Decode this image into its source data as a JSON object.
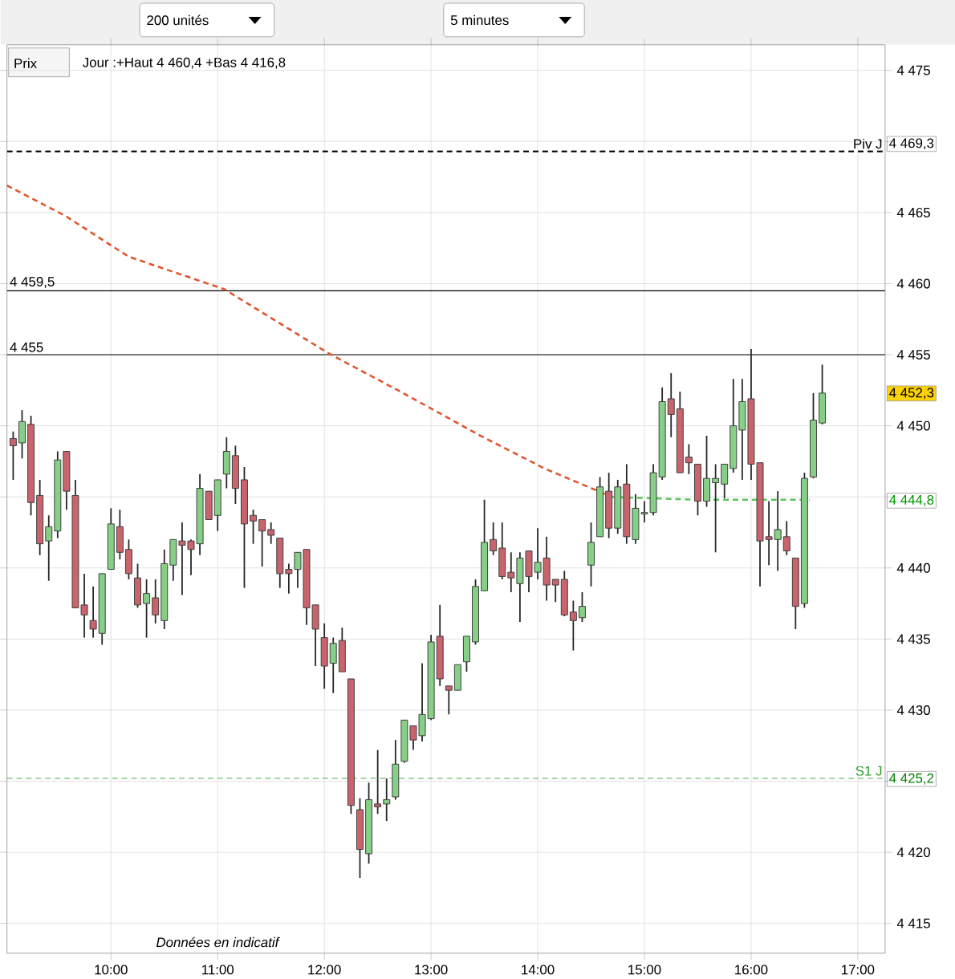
{
  "chart_data": {
    "type": "candlestick",
    "x": [
      9.0833,
      9.1667,
      9.25,
      9.3333,
      9.4167,
      9.5,
      9.5833,
      9.6667,
      9.75,
      9.8333,
      9.9167,
      10,
      10.0833,
      10.1667,
      10.25,
      10.3333,
      10.4167,
      10.5,
      10.5833,
      10.6667,
      10.75,
      10.8333,
      10.9167,
      11,
      11.0833,
      11.1667,
      11.25,
      11.3333,
      11.4167,
      11.5,
      11.5833,
      11.6667,
      11.75,
      11.8333,
      11.9167,
      12,
      12.0833,
      12.1667,
      12.25,
      12.3333,
      12.4167,
      12.5,
      12.5833,
      12.6667,
      12.75,
      12.8333,
      12.9167,
      13,
      13.0833,
      13.1667,
      13.25,
      13.3333,
      13.4167,
      13.5,
      13.5833,
      13.6667,
      13.75,
      13.8333,
      13.9167,
      14,
      14.0833,
      14.1667,
      14.25,
      14.3333,
      14.4167,
      14.5,
      14.5833,
      14.6667,
      14.75,
      14.8333,
      14.9167,
      15,
      15.0833,
      15.1667,
      15.25,
      15.3333,
      15.4167,
      15.5,
      15.5833,
      15.6667,
      15.75,
      15.8333,
      15.9167,
      16,
      16.0833,
      16.1667,
      16.25,
      16.3333,
      16.4167,
      16.5,
      16.5833,
      16.6667
    ],
    "ohlc": [
      [
        4449.1,
        4449.6,
        4446.2,
        4448.6
      ],
      [
        4448.8,
        4451.1,
        4447.7,
        4450.3
      ],
      [
        4450.1,
        4450.7,
        4443.7,
        4444.6
      ],
      [
        4445.1,
        4446.2,
        4440.9,
        4441.7
      ],
      [
        4441.9,
        4443.7,
        4439.1,
        4442.9
      ],
      [
        4442.6,
        4448.2,
        4442.1,
        4447.6
      ],
      [
        4448.2,
        4448.2,
        4444.1,
        4445.4
      ],
      [
        4445.1,
        4446.2,
        4437.2,
        4437.2
      ],
      [
        4437.4,
        4439.6,
        4435.1,
        4436.7
      ],
      [
        4436.3,
        4438.7,
        4435.1,
        4435.7
      ],
      [
        4435.4,
        4439.6,
        4434.6,
        4439.6
      ],
      [
        4439.9,
        4444.2,
        4439.9,
        4443.1
      ],
      [
        4442.9,
        4444.1,
        4440.6,
        4441.1
      ],
      [
        4441.3,
        4442.0,
        4439.2,
        4439.6
      ],
      [
        4439.3,
        4440.3,
        4437.2,
        4437.4
      ],
      [
        4437.5,
        4439.2,
        4435.1,
        4438.2
      ],
      [
        4437.9,
        4439.2,
        4436.1,
        4436.7
      ],
      [
        4436.3,
        4441.3,
        4435.7,
        4440.3
      ],
      [
        4440.2,
        4442.0,
        4439.1,
        4442.0
      ],
      [
        4441.9,
        4443.2,
        4438.1,
        4441.6
      ],
      [
        4441.9,
        4442.0,
        4439.5,
        4441.3
      ],
      [
        4441.7,
        4446.6,
        4440.9,
        4445.6
      ],
      [
        4445.4,
        4445.4,
        4443.4,
        4443.4
      ],
      [
        4443.7,
        4446.2,
        4442.6,
        4446.2
      ],
      [
        4446.6,
        4449.2,
        4445.6,
        4448.2
      ],
      [
        4447.9,
        4448.6,
        4444.5,
        4445.6
      ],
      [
        4446.2,
        4447.1,
        4438.6,
        4443.1
      ],
      [
        4443.7,
        4444.1,
        4441.7,
        4443.3
      ],
      [
        4443.4,
        4443.4,
        4440.1,
        4442.6
      ],
      [
        4442.7,
        4443.2,
        4441.7,
        4442.3
      ],
      [
        4442.1,
        4442.1,
        4438.6,
        4439.6
      ],
      [
        4439.9,
        4440.3,
        4438.2,
        4439.6
      ],
      [
        4439.9,
        4441.1,
        4438.6,
        4441.1
      ],
      [
        4441.3,
        4441.3,
        4436.0,
        4437.2
      ],
      [
        4437.4,
        4437.4,
        4433.1,
        4435.7
      ],
      [
        4435.1,
        4436.1,
        4431.5,
        4433.1
      ],
      [
        4433.3,
        4435.1,
        4431.2,
        4434.7
      ],
      [
        4434.9,
        4435.8,
        4432.7,
        4432.7
      ],
      [
        4432.2,
        4432.2,
        4422.7,
        4423.3
      ],
      [
        4423.0,
        4423.8,
        4418.2,
        4420.2
      ],
      [
        4419.9,
        4424.9,
        4419.2,
        4423.7
      ],
      [
        4423.4,
        4427.2,
        4422.7,
        4423.2
      ],
      [
        4423.4,
        4425.2,
        4422.2,
        4423.7
      ],
      [
        4423.9,
        4427.9,
        4423.7,
        4426.2
      ],
      [
        4426.4,
        4429.3,
        4426.3,
        4429.3
      ],
      [
        4428.9,
        4428.9,
        4427.2,
        4427.9
      ],
      [
        4428.2,
        4433.3,
        4427.8,
        4429.7
      ],
      [
        4429.4,
        4435.3,
        4429.3,
        4434.8
      ],
      [
        4435.2,
        4437.4,
        4431.7,
        4432.2
      ],
      [
        4431.7,
        4431.7,
        4429.7,
        4431.4
      ],
      [
        4431.4,
        4433.2,
        4431.4,
        4433.2
      ],
      [
        4433.4,
        4435.2,
        4432.7,
        4435.2
      ],
      [
        4434.8,
        4439.2,
        4434.6,
        4438.7
      ],
      [
        4438.4,
        4444.8,
        4438.4,
        4441.8
      ],
      [
        4442.0,
        4443.2,
        4440.9,
        4441.2
      ],
      [
        4441.4,
        4443.2,
        4439.2,
        4439.4
      ],
      [
        4439.7,
        4441.1,
        4438.3,
        4439.3
      ],
      [
        4438.9,
        4441.1,
        4436.2,
        4440.7
      ],
      [
        4441.2,
        4441.2,
        4438.3,
        4439.4
      ],
      [
        4439.7,
        4442.8,
        4439.2,
        4440.4
      ],
      [
        4440.7,
        4442.2,
        4437.7,
        4438.8
      ],
      [
        4439.2,
        4439.2,
        4437.6,
        4438.8
      ],
      [
        4439.2,
        4439.8,
        4436.6,
        4436.7
      ],
      [
        4436.9,
        4437.7,
        4434.2,
        4436.3
      ],
      [
        4436.5,
        4438.3,
        4436.2,
        4437.3
      ],
      [
        4440.2,
        4443.2,
        4438.7,
        4441.8
      ],
      [
        4442.2,
        4446.4,
        4442.2,
        4445.7
      ],
      [
        4445.4,
        4446.7,
        4442.1,
        4442.8
      ],
      [
        4442.8,
        4446.2,
        4442.4,
        4445.7
      ],
      [
        4445.9,
        4447.3,
        4441.7,
        4442.2
      ],
      [
        4442.0,
        4445.2,
        4441.7,
        4444.2
      ],
      [
        4443.8,
        4444.7,
        4443.2,
        4443.9
      ],
      [
        4443.9,
        4447.3,
        4443.7,
        4446.7
      ],
      [
        4446.4,
        4452.7,
        4446.2,
        4451.7
      ],
      [
        4451.9,
        4453.7,
        4449.2,
        4450.8
      ],
      [
        4451.2,
        4452.4,
        4446.7,
        4446.7
      ],
      [
        4447.8,
        4448.7,
        4446.6,
        4447.4
      ],
      [
        4447.3,
        4447.3,
        4443.7,
        4444.7
      ],
      [
        4444.7,
        4449.3,
        4444.3,
        4446.3
      ],
      [
        4446.0,
        4447.3,
        4441.1,
        4446.3
      ],
      [
        4445.9,
        4447.3,
        4444.9,
        4447.3
      ],
      [
        4447.0,
        4453.3,
        4446.7,
        4450.0
      ],
      [
        4449.7,
        4453.3,
        4446.2,
        4451.7
      ],
      [
        4451.9,
        4455.4,
        4446.2,
        4447.3
      ],
      [
        4447.4,
        4447.4,
        4438.7,
        4441.9
      ],
      [
        4442.2,
        4444.7,
        4440.2,
        4442.0
      ],
      [
        4442.0,
        4445.4,
        4439.8,
        4442.7
      ],
      [
        4442.2,
        4443.3,
        4440.9,
        4441.2
      ],
      [
        4440.7,
        4440.7,
        4435.7,
        4437.3
      ],
      [
        4437.5,
        4446.7,
        4437.2,
        4446.3
      ],
      [
        4446.4,
        4452.3,
        4446.3,
        4450.4
      ],
      [
        4450.2,
        4454.3,
        4450.1,
        4452.3
      ]
    ],
    "series": [
      {
        "type": "line",
        "color": "#e0552e",
        "line_style": "dashed",
        "x": [
          9.025,
          9.565,
          10.165,
          11.064,
          12.039,
          12.714,
          13.463,
          14.063,
          14.663
        ],
        "values": [
          4466.9,
          4464.8,
          4461.9,
          4459.6,
          4455.1,
          4452.4,
          4449.3,
          4447.0,
          4445.1
        ]
      },
      {
        "type": "line",
        "color": "#5cc45c",
        "line_style": "dashed",
        "x": [
          14.663,
          15.5,
          16.55
        ],
        "values": [
          4445.0,
          4444.8,
          4444.8
        ]
      }
    ],
    "ref_lines": [
      {
        "axis": "y",
        "value": 4469.3,
        "label": "Piv J",
        "color": "#000000",
        "line_style": "dashed"
      },
      {
        "axis": "y",
        "value": 4459.5,
        "label": "4 459,5",
        "color": "#000000"
      },
      {
        "axis": "y",
        "value": 4455,
        "label": "4 455",
        "color": "#000000"
      },
      {
        "axis": "y",
        "value": 4425.2,
        "label": "S1 J",
        "color": "#2e9e2e",
        "line_style": "dashed"
      }
    ],
    "annotations": [
      "200 unités",
      "5 minutes",
      "Prix",
      "Jour :+Haut 4 460,4 +Bas 4 416,8",
      "Données en indicatif",
      "4 469,3",
      "4 452,3",
      "4 444,8",
      "4 425,2"
    ],
    "xlim": [
      9.025,
      17.256
    ],
    "ylim": [
      4412.9,
      4476.8
    ],
    "xticks": [
      {
        "value": 10,
        "label": "10:00"
      },
      {
        "value": 11,
        "label": "11:00"
      },
      {
        "value": 12,
        "label": "12:00"
      },
      {
        "value": 13,
        "label": "13:00"
      },
      {
        "value": 14,
        "label": "14:00"
      },
      {
        "value": 15,
        "label": "15:00"
      },
      {
        "value": 16,
        "label": "16:00"
      },
      {
        "value": 17,
        "label": "17:00"
      }
    ],
    "yticks": [
      {
        "value": 4415,
        "label": "4 415"
      },
      {
        "value": 4420,
        "label": "4 420"
      },
      {
        "value": 4425,
        "label": null
      },
      {
        "value": 4430,
        "label": "4 430"
      },
      {
        "value": 4435,
        "label": "4 435"
      },
      {
        "value": 4440,
        "label": "4 440"
      },
      {
        "value": 4445,
        "label": null
      },
      {
        "value": 4450,
        "label": "4 450"
      },
      {
        "value": 4455,
        "label": "4 455"
      },
      {
        "value": 4460,
        "label": "4 460"
      },
      {
        "value": 4465,
        "label": "4 465"
      },
      {
        "value": 4470,
        "label": null
      },
      {
        "value": 4475,
        "label": "4 475"
      }
    ],
    "grid": true
  }
}
